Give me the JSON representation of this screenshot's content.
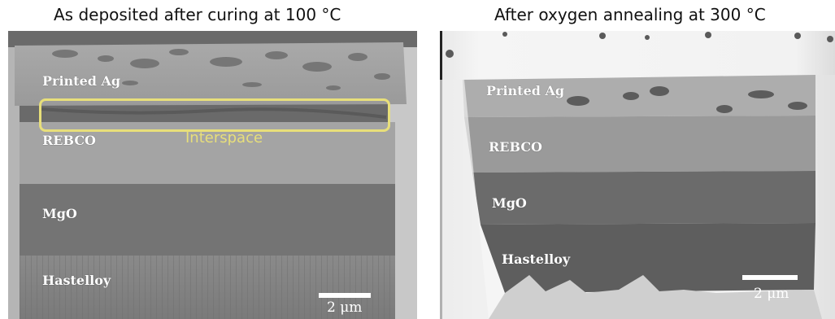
{
  "panels": [
    {
      "title": "As deposited after curing at 100 °C",
      "layers": [
        "Printed Ag",
        "REBCO",
        "MgO",
        "Hastelloy"
      ],
      "annotation": "Interspace",
      "scale_bar_label": "2 μm"
    },
    {
      "title": "After oxygen annealing at 300 °C",
      "layers": [
        "Printed Ag",
        "REBCO",
        "MgO",
        "Hastelloy"
      ],
      "scale_bar_label": "2 μm"
    }
  ],
  "colors": {
    "annotation": "#e8df7a",
    "label_text": "#ffffff"
  }
}
